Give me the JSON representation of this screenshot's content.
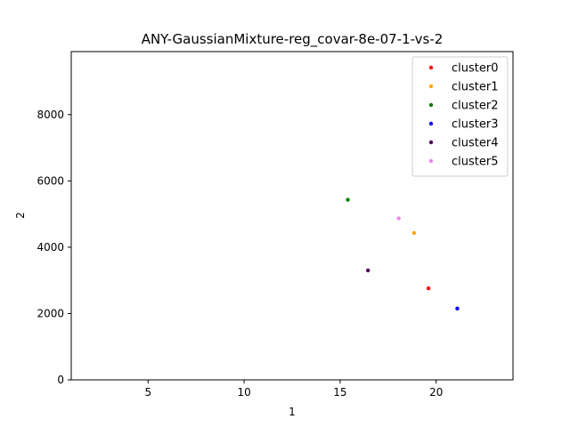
{
  "chart_data": {
    "type": "scatter",
    "title": "ANY-GaussianMixture-reg_covar-8e-07-1-vs-2",
    "xlabel": "1",
    "ylabel": "2",
    "xlim": [
      1.0,
      24.0
    ],
    "ylim": [
      0,
      9900
    ],
    "x_ticks": [
      5,
      10,
      15,
      20
    ],
    "y_ticks": [
      0,
      2000,
      4000,
      6000,
      8000
    ],
    "grid": false,
    "legend_position": "top-right",
    "series": [
      {
        "name": "cluster0",
        "color": "#ff0000",
        "points": [
          [
            19.6,
            2760
          ]
        ]
      },
      {
        "name": "cluster1",
        "color": "#ffa500",
        "points": [
          [
            18.85,
            4430
          ]
        ]
      },
      {
        "name": "cluster2",
        "color": "#008000",
        "points": [
          [
            15.4,
            5430
          ]
        ]
      },
      {
        "name": "cluster3",
        "color": "#0000ff",
        "points": [
          [
            21.1,
            2150
          ]
        ]
      },
      {
        "name": "cluster4",
        "color": "#4b0055",
        "points": [
          [
            16.45,
            3300
          ]
        ]
      },
      {
        "name": "cluster5",
        "color": "#ee82ee",
        "points": [
          [
            18.05,
            4870
          ]
        ]
      }
    ]
  }
}
